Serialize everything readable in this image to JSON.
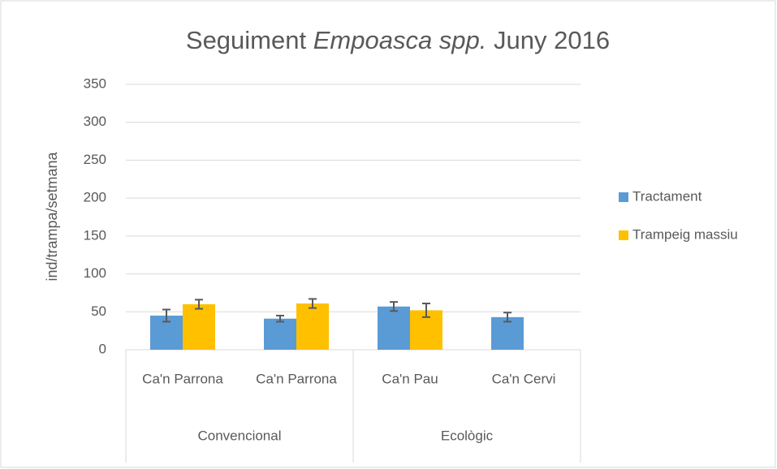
{
  "chart_data": {
    "type": "bar",
    "title": [
      "Seguiment",
      "Empoasca spp.",
      "Juny 2016"
    ],
    "title_italic": [
      false,
      true,
      false
    ],
    "y_label": "ind/trampa/setmana",
    "groups": [
      {
        "name": "Convencional",
        "categories": [
          "Ca'n Parrona",
          "Ca'n Parrona"
        ]
      },
      {
        "name": "Ecològic",
        "categories": [
          "Ca'n Pau",
          "Ca'n Cervi"
        ]
      }
    ],
    "series": [
      {
        "name": "Tractament",
        "color": "#5b9bd5",
        "values": [
          45,
          41,
          57,
          43
        ],
        "errors": [
          8,
          4,
          6,
          6
        ]
      },
      {
        "name": "Trampeig massiu",
        "color": "#ffc000",
        "values": [
          60,
          61,
          52,
          null
        ],
        "errors": [
          6,
          6,
          9,
          null
        ]
      }
    ],
    "ylim": [
      0,
      350
    ],
    "yticks": [
      0,
      50,
      100,
      150,
      200,
      250,
      300,
      350
    ],
    "grid": true,
    "legend": "right"
  }
}
